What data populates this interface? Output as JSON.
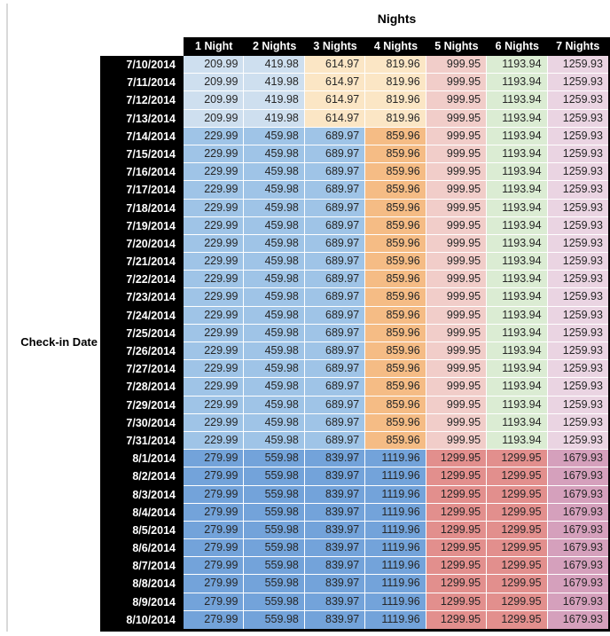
{
  "chart_data": {
    "type": "table",
    "title": "Nights",
    "row_label": "Check-in Date",
    "columns": [
      "1 Night",
      "2 Nights",
      "3 Nights",
      "4 Nights",
      "5 Nights",
      "6 Nights",
      "7 Nights"
    ],
    "palette": {
      "lightBlue": "#CEDFEF",
      "cream": "#FBE6C5",
      "medBlue": "#9FC4E7",
      "orange": "#F5BC85",
      "pink": "#F1CDC9",
      "green": "#DBECD3",
      "lavender": "#EAD4E2",
      "darkBlue": "#73A3DA",
      "salmon": "#E28F8D",
      "mauve": "#D5A0BC",
      "header_bg": "#000000",
      "header_text": "#FFFFFF"
    },
    "band_colors": {
      "A": [
        "lightBlue",
        "lightBlue",
        "cream",
        "cream",
        "pink",
        "green",
        "lavender"
      ],
      "B": [
        "medBlue",
        "medBlue",
        "medBlue",
        "orange",
        "pink",
        "green",
        "lavender"
      ],
      "C": [
        "darkBlue",
        "darkBlue",
        "darkBlue",
        "darkBlue",
        "salmon",
        "salmon",
        "mauve"
      ]
    },
    "rows": [
      {
        "date": "7/10/2014",
        "band": "A",
        "values": [
          "209.99",
          "419.98",
          "614.97",
          "819.96",
          "999.95",
          "1193.94",
          "1259.93"
        ]
      },
      {
        "date": "7/11/2014",
        "band": "A",
        "values": [
          "209.99",
          "419.98",
          "614.97",
          "819.96",
          "999.95",
          "1193.94",
          "1259.93"
        ]
      },
      {
        "date": "7/12/2014",
        "band": "A",
        "values": [
          "209.99",
          "419.98",
          "614.97",
          "819.96",
          "999.95",
          "1193.94",
          "1259.93"
        ]
      },
      {
        "date": "7/13/2014",
        "band": "A",
        "values": [
          "209.99",
          "419.98",
          "614.97",
          "819.96",
          "999.95",
          "1193.94",
          "1259.93"
        ]
      },
      {
        "date": "7/14/2014",
        "band": "B",
        "values": [
          "229.99",
          "459.98",
          "689.97",
          "859.96",
          "999.95",
          "1193.94",
          "1259.93"
        ]
      },
      {
        "date": "7/15/2014",
        "band": "B",
        "values": [
          "229.99",
          "459.98",
          "689.97",
          "859.96",
          "999.95",
          "1193.94",
          "1259.93"
        ]
      },
      {
        "date": "7/16/2014",
        "band": "B",
        "values": [
          "229.99",
          "459.98",
          "689.97",
          "859.96",
          "999.95",
          "1193.94",
          "1259.93"
        ]
      },
      {
        "date": "7/17/2014",
        "band": "B",
        "values": [
          "229.99",
          "459.98",
          "689.97",
          "859.96",
          "999.95",
          "1193.94",
          "1259.93"
        ]
      },
      {
        "date": "7/18/2014",
        "band": "B",
        "values": [
          "229.99",
          "459.98",
          "689.97",
          "859.96",
          "999.95",
          "1193.94",
          "1259.93"
        ]
      },
      {
        "date": "7/19/2014",
        "band": "B",
        "values": [
          "229.99",
          "459.98",
          "689.97",
          "859.96",
          "999.95",
          "1193.94",
          "1259.93"
        ]
      },
      {
        "date": "7/20/2014",
        "band": "B",
        "values": [
          "229.99",
          "459.98",
          "689.97",
          "859.96",
          "999.95",
          "1193.94",
          "1259.93"
        ]
      },
      {
        "date": "7/21/2014",
        "band": "B",
        "values": [
          "229.99",
          "459.98",
          "689.97",
          "859.96",
          "999.95",
          "1193.94",
          "1259.93"
        ]
      },
      {
        "date": "7/22/2014",
        "band": "B",
        "values": [
          "229.99",
          "459.98",
          "689.97",
          "859.96",
          "999.95",
          "1193.94",
          "1259.93"
        ]
      },
      {
        "date": "7/23/2014",
        "band": "B",
        "values": [
          "229.99",
          "459.98",
          "689.97",
          "859.96",
          "999.95",
          "1193.94",
          "1259.93"
        ]
      },
      {
        "date": "7/24/2014",
        "band": "B",
        "values": [
          "229.99",
          "459.98",
          "689.97",
          "859.96",
          "999.95",
          "1193.94",
          "1259.93"
        ]
      },
      {
        "date": "7/25/2014",
        "band": "B",
        "values": [
          "229.99",
          "459.98",
          "689.97",
          "859.96",
          "999.95",
          "1193.94",
          "1259.93"
        ]
      },
      {
        "date": "7/26/2014",
        "band": "B",
        "values": [
          "229.99",
          "459.98",
          "689.97",
          "859.96",
          "999.95",
          "1193.94",
          "1259.93"
        ]
      },
      {
        "date": "7/27/2014",
        "band": "B",
        "values": [
          "229.99",
          "459.98",
          "689.97",
          "859.96",
          "999.95",
          "1193.94",
          "1259.93"
        ]
      },
      {
        "date": "7/28/2014",
        "band": "B",
        "values": [
          "229.99",
          "459.98",
          "689.97",
          "859.96",
          "999.95",
          "1193.94",
          "1259.93"
        ]
      },
      {
        "date": "7/29/2014",
        "band": "B",
        "values": [
          "229.99",
          "459.98",
          "689.97",
          "859.96",
          "999.95",
          "1193.94",
          "1259.93"
        ]
      },
      {
        "date": "7/30/2014",
        "band": "B",
        "values": [
          "229.99",
          "459.98",
          "689.97",
          "859.96",
          "999.95",
          "1193.94",
          "1259.93"
        ]
      },
      {
        "date": "7/31/2014",
        "band": "B",
        "values": [
          "229.99",
          "459.98",
          "689.97",
          "859.96",
          "999.95",
          "1193.94",
          "1259.93"
        ]
      },
      {
        "date": "8/1/2014",
        "band": "C",
        "values": [
          "279.99",
          "559.98",
          "839.97",
          "1119.96",
          "1299.95",
          "1299.95",
          "1679.93"
        ]
      },
      {
        "date": "8/2/2014",
        "band": "C",
        "values": [
          "279.99",
          "559.98",
          "839.97",
          "1119.96",
          "1299.95",
          "1299.95",
          "1679.93"
        ]
      },
      {
        "date": "8/3/2014",
        "band": "C",
        "values": [
          "279.99",
          "559.98",
          "839.97",
          "1119.96",
          "1299.95",
          "1299.95",
          "1679.93"
        ]
      },
      {
        "date": "8/4/2014",
        "band": "C",
        "values": [
          "279.99",
          "559.98",
          "839.97",
          "1119.96",
          "1299.95",
          "1299.95",
          "1679.93"
        ]
      },
      {
        "date": "8/5/2014",
        "band": "C",
        "values": [
          "279.99",
          "559.98",
          "839.97",
          "1119.96",
          "1299.95",
          "1299.95",
          "1679.93"
        ]
      },
      {
        "date": "8/6/2014",
        "band": "C",
        "values": [
          "279.99",
          "559.98",
          "839.97",
          "1119.96",
          "1299.95",
          "1299.95",
          "1679.93"
        ]
      },
      {
        "date": "8/7/2014",
        "band": "C",
        "values": [
          "279.99",
          "559.98",
          "839.97",
          "1119.96",
          "1299.95",
          "1299.95",
          "1679.93"
        ]
      },
      {
        "date": "8/8/2014",
        "band": "C",
        "values": [
          "279.99",
          "559.98",
          "839.97",
          "1119.96",
          "1299.95",
          "1299.95",
          "1679.93"
        ]
      },
      {
        "date": "8/9/2014",
        "band": "C",
        "values": [
          "279.99",
          "559.98",
          "839.97",
          "1119.96",
          "1299.95",
          "1299.95",
          "1679.93"
        ]
      },
      {
        "date": "8/10/2014",
        "band": "C",
        "values": [
          "279.99",
          "559.98",
          "839.97",
          "1119.96",
          "1299.95",
          "1299.95",
          "1679.93"
        ]
      }
    ]
  }
}
